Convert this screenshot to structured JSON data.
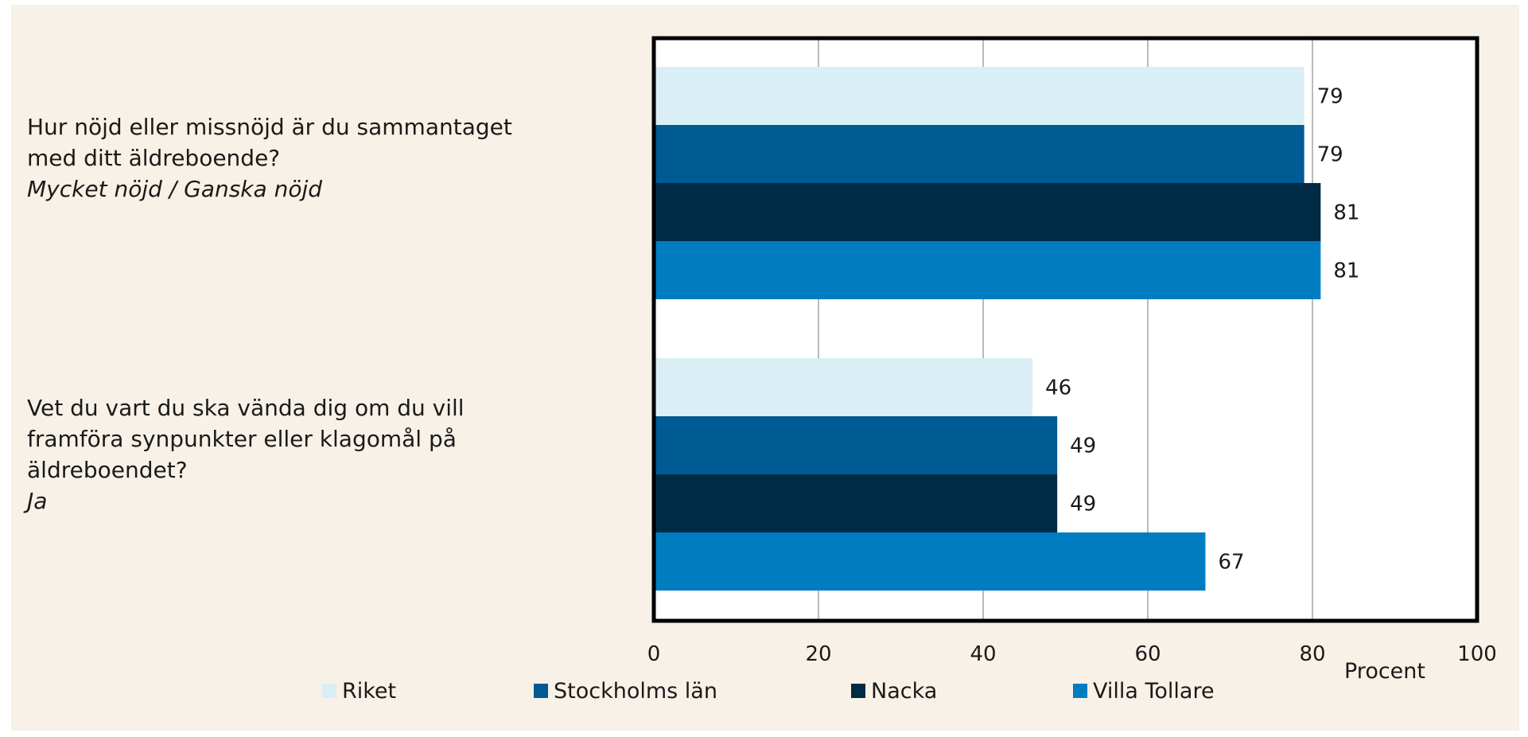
{
  "chart_data": {
    "type": "bar",
    "orientation": "horizontal",
    "categories": [
      {
        "question": "Hur nöjd eller missnöjd är du sammantaget med ditt äldreboende?",
        "answer": "Mycket nöjd / Ganska nöjd"
      },
      {
        "question": "Vet du vart du ska vända dig om du vill framföra synpunkter eller klagomål på äldreboendet?",
        "answer": "Ja"
      }
    ],
    "series": [
      {
        "name": "Riket",
        "color": "#daeef5",
        "values": [
          79,
          46
        ]
      },
      {
        "name": "Stockholms län",
        "color": "#005a93",
        "values": [
          79,
          49
        ]
      },
      {
        "name": "Nacka",
        "color": "#002b44",
        "values": [
          81,
          49
        ]
      },
      {
        "name": "Villa Tollare",
        "color": "#007dc1",
        "values": [
          81,
          67
        ]
      }
    ],
    "xlabel": "Procent",
    "xlim": [
      0,
      100
    ],
    "xticks": [
      0,
      20,
      40,
      60,
      80,
      100
    ],
    "grid": true,
    "legend_position": "bottom"
  }
}
